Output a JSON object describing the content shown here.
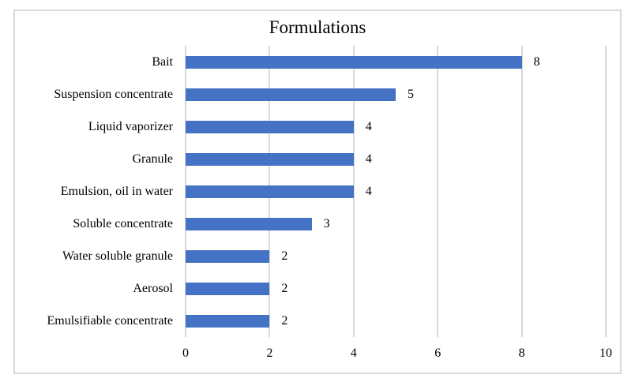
{
  "chart_data": {
    "type": "bar",
    "orientation": "horizontal",
    "title": "Formulations",
    "categories": [
      "Bait",
      "Suspension concentrate",
      "Liquid vaporizer",
      "Granule",
      "Emulsion, oil in water",
      "Soluble concentrate",
      "Water soluble granule",
      "Aerosol",
      "Emulsifiable concentrate"
    ],
    "values": [
      8,
      5,
      4,
      4,
      4,
      3,
      2,
      2,
      2
    ],
    "data_labels": [
      "8",
      "5",
      "4",
      "4",
      "4",
      "3",
      "2",
      "2",
      "2"
    ],
    "xlabel": "",
    "ylabel": "",
    "xlim": [
      0,
      10
    ],
    "xticks": [
      0,
      2,
      4,
      6,
      8,
      10
    ],
    "xtick_labels": [
      "0",
      "2",
      "4",
      "6",
      "8",
      "10"
    ],
    "grid": "vertical",
    "legend": "none",
    "bar_color": "#4472C4",
    "gridline_color": "#D9D9D9",
    "frame_border_color": "#D9D9D9",
    "text_color": "#000000",
    "background_color": "#FFFFFF"
  }
}
